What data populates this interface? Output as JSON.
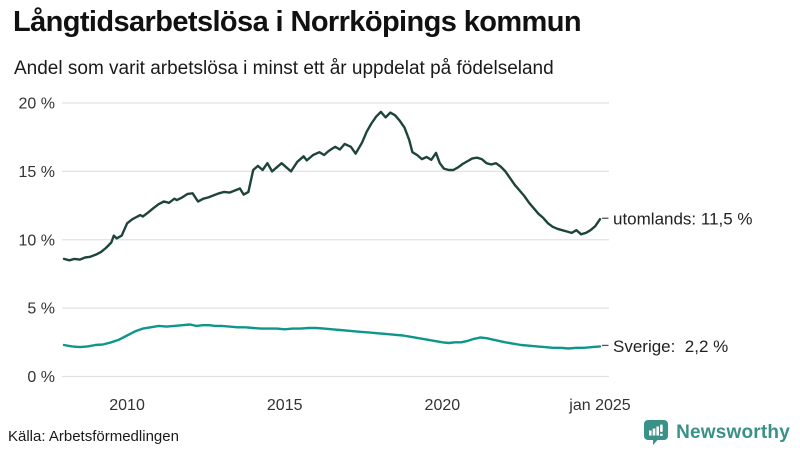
{
  "header": {
    "title": "Långtidsarbetslösa i Norrköpings kommun",
    "subtitle": "Andel som varit arbetslösa i minst ett år uppdelat på födelseland"
  },
  "chart_data": {
    "type": "line",
    "title": "Långtidsarbetslösa i Norrköpings kommun",
    "subtitle": "Andel som varit arbetslösa i minst ett år uppdelat på födelseland",
    "grid": true,
    "legend_position": "right-end-labels",
    "x_axis": {
      "range": [
        2008,
        2025
      ],
      "ticks": [
        {
          "x": 2010,
          "label": "2010"
        },
        {
          "x": 2015,
          "label": "2015"
        },
        {
          "x": 2020,
          "label": "2020"
        },
        {
          "x": 2025,
          "label": "jan 2025"
        }
      ]
    },
    "y_axis": {
      "range": [
        0,
        20
      ],
      "unit": "%",
      "ticks": [
        {
          "v": 20,
          "label": "20 %"
        },
        {
          "v": 15,
          "label": "15 %"
        },
        {
          "v": 10,
          "label": "10 %"
        },
        {
          "v": 5,
          "label": "5 %"
        },
        {
          "v": 0,
          "label": "0 %"
        }
      ]
    },
    "series": [
      {
        "name": "utomlands",
        "color": "#1e443b",
        "end_value": "11,5 %",
        "end_label": "utomlands: 11,5 %",
        "points": [
          [
            2008.0,
            8.6
          ],
          [
            2008.17,
            8.5
          ],
          [
            2008.33,
            8.6
          ],
          [
            2008.5,
            8.55
          ],
          [
            2008.67,
            8.7
          ],
          [
            2008.83,
            8.75
          ],
          [
            2009.0,
            8.9
          ],
          [
            2009.17,
            9.1
          ],
          [
            2009.33,
            9.4
          ],
          [
            2009.5,
            9.8
          ],
          [
            2009.58,
            10.3
          ],
          [
            2009.67,
            10.1
          ],
          [
            2009.83,
            10.3
          ],
          [
            2010.0,
            11.2
          ],
          [
            2010.17,
            11.5
          ],
          [
            2010.33,
            11.7
          ],
          [
            2010.42,
            11.8
          ],
          [
            2010.5,
            11.7
          ],
          [
            2010.67,
            12.0
          ],
          [
            2010.83,
            12.3
          ],
          [
            2011.0,
            12.6
          ],
          [
            2011.17,
            12.8
          ],
          [
            2011.33,
            12.7
          ],
          [
            2011.5,
            13.0
          ],
          [
            2011.58,
            12.9
          ],
          [
            2011.75,
            13.1
          ],
          [
            2011.92,
            13.35
          ],
          [
            2012.08,
            13.4
          ],
          [
            2012.25,
            12.8
          ],
          [
            2012.42,
            13.0
          ],
          [
            2012.58,
            13.1
          ],
          [
            2012.75,
            13.25
          ],
          [
            2012.92,
            13.4
          ],
          [
            2013.08,
            13.5
          ],
          [
            2013.25,
            13.45
          ],
          [
            2013.42,
            13.6
          ],
          [
            2013.58,
            13.75
          ],
          [
            2013.7,
            13.3
          ],
          [
            2013.85,
            13.5
          ],
          [
            2014.0,
            15.1
          ],
          [
            2014.15,
            15.4
          ],
          [
            2014.3,
            15.1
          ],
          [
            2014.45,
            15.6
          ],
          [
            2014.6,
            15.0
          ],
          [
            2014.75,
            15.3
          ],
          [
            2014.9,
            15.6
          ],
          [
            2015.05,
            15.3
          ],
          [
            2015.2,
            15.0
          ],
          [
            2015.4,
            15.7
          ],
          [
            2015.6,
            16.1
          ],
          [
            2015.7,
            15.8
          ],
          [
            2015.9,
            16.2
          ],
          [
            2016.1,
            16.4
          ],
          [
            2016.25,
            16.2
          ],
          [
            2016.4,
            16.5
          ],
          [
            2016.6,
            16.8
          ],
          [
            2016.75,
            16.6
          ],
          [
            2016.9,
            17.0
          ],
          [
            2017.1,
            16.8
          ],
          [
            2017.25,
            16.3
          ],
          [
            2017.45,
            17.1
          ],
          [
            2017.6,
            17.9
          ],
          [
            2017.75,
            18.5
          ],
          [
            2017.9,
            19.0
          ],
          [
            2018.05,
            19.35
          ],
          [
            2018.2,
            18.95
          ],
          [
            2018.35,
            19.3
          ],
          [
            2018.5,
            19.1
          ],
          [
            2018.65,
            18.7
          ],
          [
            2018.8,
            18.2
          ],
          [
            2018.95,
            17.3
          ],
          [
            2019.05,
            16.4
          ],
          [
            2019.2,
            16.2
          ],
          [
            2019.35,
            15.9
          ],
          [
            2019.5,
            16.05
          ],
          [
            2019.65,
            15.85
          ],
          [
            2019.8,
            16.35
          ],
          [
            2019.92,
            15.6
          ],
          [
            2020.05,
            15.2
          ],
          [
            2020.2,
            15.1
          ],
          [
            2020.35,
            15.1
          ],
          [
            2020.5,
            15.3
          ],
          [
            2020.65,
            15.55
          ],
          [
            2020.8,
            15.75
          ],
          [
            2020.95,
            15.95
          ],
          [
            2021.1,
            16.0
          ],
          [
            2021.25,
            15.9
          ],
          [
            2021.4,
            15.6
          ],
          [
            2021.55,
            15.5
          ],
          [
            2021.7,
            15.6
          ],
          [
            2021.85,
            15.35
          ],
          [
            2022.0,
            15.0
          ],
          [
            2022.15,
            14.5
          ],
          [
            2022.3,
            14.0
          ],
          [
            2022.45,
            13.6
          ],
          [
            2022.6,
            13.2
          ],
          [
            2022.75,
            12.7
          ],
          [
            2022.9,
            12.3
          ],
          [
            2023.05,
            11.9
          ],
          [
            2023.2,
            11.6
          ],
          [
            2023.35,
            11.2
          ],
          [
            2023.5,
            10.95
          ],
          [
            2023.65,
            10.8
          ],
          [
            2023.8,
            10.7
          ],
          [
            2023.95,
            10.6
          ],
          [
            2024.1,
            10.5
          ],
          [
            2024.25,
            10.7
          ],
          [
            2024.4,
            10.4
          ],
          [
            2024.55,
            10.5
          ],
          [
            2024.7,
            10.7
          ],
          [
            2024.85,
            11.0
          ],
          [
            2025.0,
            11.5
          ]
        ]
      },
      {
        "name": "Sverige",
        "color": "#0f968a",
        "end_value": "2,2 %",
        "end_label": "Sverige:  2,2 %",
        "points": [
          [
            2008.0,
            2.3
          ],
          [
            2008.25,
            2.2
          ],
          [
            2008.5,
            2.15
          ],
          [
            2008.75,
            2.2
          ],
          [
            2009.0,
            2.3
          ],
          [
            2009.25,
            2.35
          ],
          [
            2009.5,
            2.5
          ],
          [
            2009.75,
            2.7
          ],
          [
            2010.0,
            3.0
          ],
          [
            2010.25,
            3.3
          ],
          [
            2010.5,
            3.5
          ],
          [
            2010.75,
            3.6
          ],
          [
            2011.0,
            3.7
          ],
          [
            2011.25,
            3.65
          ],
          [
            2011.5,
            3.7
          ],
          [
            2011.75,
            3.75
          ],
          [
            2012.0,
            3.8
          ],
          [
            2012.2,
            3.7
          ],
          [
            2012.4,
            3.75
          ],
          [
            2012.6,
            3.75
          ],
          [
            2012.8,
            3.7
          ],
          [
            2013.0,
            3.7
          ],
          [
            2013.25,
            3.65
          ],
          [
            2013.5,
            3.6
          ],
          [
            2013.75,
            3.6
          ],
          [
            2014.0,
            3.55
          ],
          [
            2014.25,
            3.5
          ],
          [
            2014.5,
            3.5
          ],
          [
            2014.75,
            3.5
          ],
          [
            2015.0,
            3.45
          ],
          [
            2015.25,
            3.5
          ],
          [
            2015.5,
            3.5
          ],
          [
            2015.75,
            3.55
          ],
          [
            2016.0,
            3.55
          ],
          [
            2016.25,
            3.5
          ],
          [
            2016.5,
            3.45
          ],
          [
            2016.75,
            3.4
          ],
          [
            2017.0,
            3.35
          ],
          [
            2017.25,
            3.3
          ],
          [
            2017.5,
            3.25
          ],
          [
            2017.75,
            3.2
          ],
          [
            2018.0,
            3.15
          ],
          [
            2018.25,
            3.1
          ],
          [
            2018.5,
            3.05
          ],
          [
            2018.75,
            3.0
          ],
          [
            2019.0,
            2.9
          ],
          [
            2019.25,
            2.8
          ],
          [
            2019.5,
            2.7
          ],
          [
            2019.75,
            2.6
          ],
          [
            2020.0,
            2.5
          ],
          [
            2020.2,
            2.45
          ],
          [
            2020.4,
            2.5
          ],
          [
            2020.6,
            2.5
          ],
          [
            2020.8,
            2.6
          ],
          [
            2021.0,
            2.75
          ],
          [
            2021.2,
            2.85
          ],
          [
            2021.4,
            2.8
          ],
          [
            2021.6,
            2.7
          ],
          [
            2021.8,
            2.6
          ],
          [
            2022.0,
            2.5
          ],
          [
            2022.25,
            2.4
          ],
          [
            2022.5,
            2.3
          ],
          [
            2022.75,
            2.25
          ],
          [
            2023.0,
            2.2
          ],
          [
            2023.25,
            2.15
          ],
          [
            2023.5,
            2.1
          ],
          [
            2023.75,
            2.1
          ],
          [
            2024.0,
            2.05
          ],
          [
            2024.25,
            2.1
          ],
          [
            2024.5,
            2.1
          ],
          [
            2024.75,
            2.15
          ],
          [
            2025.0,
            2.2
          ]
        ]
      }
    ]
  },
  "theme": {
    "grid_color": "#e2e2e2",
    "axis_text_color": "#333333",
    "label_text_color": "#222222",
    "leader_tick_color": "#555555"
  },
  "footer": {
    "source": "Källa: Arbetsförmedlingen",
    "brand": "Newsworthy",
    "brand_color": "#3a9188"
  }
}
